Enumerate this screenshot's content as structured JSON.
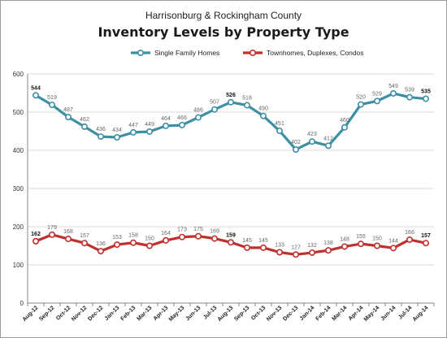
{
  "chart_data": {
    "type": "line",
    "subtitle": "Harrisonburg & Rockingham County",
    "title": "Inventory Levels by Property Type",
    "categories": [
      "Aug-12",
      "Sep-12",
      "Oct-12",
      "Nov-12",
      "Dec-12",
      "Jan-13",
      "Feb-13",
      "Mar-13",
      "Apr-13",
      "May-13",
      "Jun-13",
      "Jul-13",
      "Aug-13",
      "Sep-13",
      "Oct-13",
      "Nov-13",
      "Dec-13",
      "Jan-14",
      "Feb-14",
      "Mar-14",
      "Apr-14",
      "May-14",
      "Jun-14",
      "Jul-14",
      "Aug-14"
    ],
    "series": [
      {
        "name": "Single Family Homes",
        "color": "#3d8fa4",
        "values": [
          544,
          519,
          487,
          462,
          436,
          434,
          447,
          449,
          464,
          466,
          486,
          507,
          526,
          518,
          490,
          451,
          402,
          423,
          412,
          460,
          520,
          529,
          549,
          539,
          535
        ]
      },
      {
        "name": "Townhomes, Duplexes, Condos",
        "color": "#c0302e",
        "values": [
          162,
          179,
          168,
          157,
          136,
          153,
          158,
          150,
          164,
          173,
          175,
          169,
          159,
          145,
          145,
          133,
          127,
          132,
          138,
          148,
          155,
          150,
          144,
          166,
          157
        ]
      }
    ],
    "y_ticks": [
      "0",
      "100",
      "200",
      "300",
      "400",
      "500",
      "600"
    ],
    "ylim": [
      0,
      600
    ],
    "grid": true,
    "legend_position": "top-center"
  }
}
